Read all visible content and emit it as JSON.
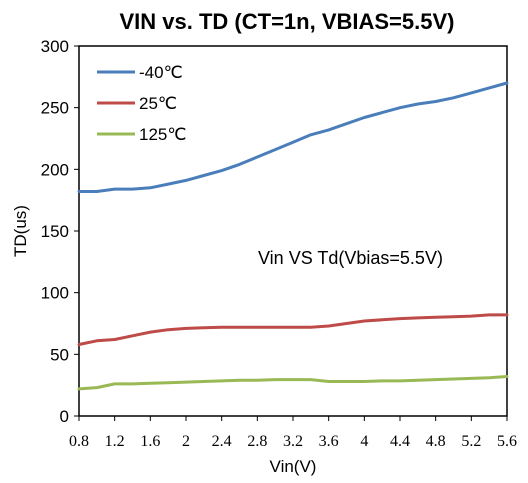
{
  "chart_data": {
    "type": "line",
    "title": "VIN vs. TD (CT=1n, VBIAS=5.5V)",
    "xlabel": "Vin(V)",
    "ylabel": "TD(us)",
    "xlim": [
      0.8,
      5.6
    ],
    "ylim": [
      0,
      300
    ],
    "x_ticks": [
      "0.8",
      "1.2",
      "1.6",
      "2",
      "2.4",
      "2.8",
      "3.2",
      "3.6",
      "4",
      "4.4",
      "4.8",
      "5.2",
      "5.6"
    ],
    "y_ticks": [
      "0",
      "50",
      "100",
      "150",
      "200",
      "250",
      "300"
    ],
    "x": [
      0.8,
      1.0,
      1.2,
      1.4,
      1.6,
      1.8,
      2.0,
      2.2,
      2.4,
      2.6,
      2.8,
      3.0,
      3.2,
      3.4,
      3.6,
      3.8,
      4.0,
      4.2,
      4.4,
      4.6,
      4.8,
      5.0,
      5.2,
      5.4,
      5.6
    ],
    "series": [
      {
        "name": "-40℃",
        "color": "#4a7ebb",
        "values": [
          182,
          182,
          184,
          184,
          185,
          188,
          191,
          195,
          199,
          204,
          210,
          216,
          222,
          228,
          232,
          237,
          242,
          246,
          250,
          253,
          255,
          258,
          262,
          266,
          270
        ]
      },
      {
        "name": "25℃",
        "color": "#be4b48",
        "values": [
          58,
          61,
          62,
          65,
          68,
          70,
          71,
          71.5,
          72,
          72,
          72,
          72,
          72,
          72,
          73,
          75,
          77,
          78,
          79,
          79.5,
          80,
          80.5,
          81,
          82,
          82
        ]
      },
      {
        "name": "125℃",
        "color": "#98b954",
        "values": [
          22,
          23,
          26,
          26,
          26.5,
          27,
          27.5,
          28,
          28.5,
          29,
          29,
          29.5,
          29.5,
          29.5,
          28,
          28,
          28,
          28.5,
          28.5,
          29,
          29.5,
          30,
          30.5,
          31,
          32
        ]
      }
    ],
    "legend_position": "top-left",
    "grid": false,
    "annotation": "Vin VS Td(Vbias=5.5V)"
  }
}
